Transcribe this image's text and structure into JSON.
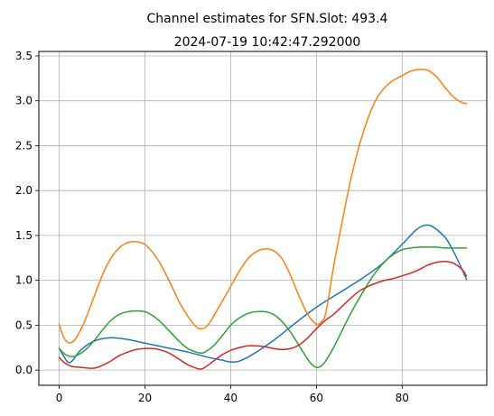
{
  "chart_data": {
    "type": "line",
    "title": "Channel estimates for SFN.Slot: 493.4",
    "subtitle": "2024-07-19 10:42:47.292000",
    "xlabel": "",
    "ylabel": "",
    "xlim": [
      -4.75,
      99.75
    ],
    "ylim": [
      -0.17,
      3.55
    ],
    "xticks": [
      0,
      20,
      40,
      60,
      80
    ],
    "yticks": [
      0.0,
      0.5,
      1.0,
      1.5,
      2.0,
      2.5,
      3.0,
      3.5
    ],
    "xtick_labels": [
      "0",
      "20",
      "40",
      "60",
      "80"
    ],
    "ytick_labels": [
      "0.0",
      "0.5",
      "1.0",
      "1.5",
      "2.0",
      "2.5",
      "3.0",
      "3.5"
    ],
    "grid": true,
    "legend": false,
    "series": [
      {
        "color": "#1f77b4",
        "x": [
          0,
          1,
          2,
          3,
          5,
          8,
          12,
          16,
          20,
          25,
          30,
          35,
          38,
          40,
          42,
          45,
          50,
          55,
          60,
          65,
          70,
          75,
          80,
          83,
          85,
          87,
          90,
          92,
          94,
          95
        ],
        "y": [
          0.24,
          0.16,
          0.09,
          0.1,
          0.22,
          0.32,
          0.36,
          0.34,
          0.3,
          0.25,
          0.2,
          0.14,
          0.11,
          0.09,
          0.1,
          0.17,
          0.33,
          0.52,
          0.7,
          0.85,
          1.0,
          1.17,
          1.4,
          1.55,
          1.61,
          1.6,
          1.48,
          1.32,
          1.12,
          1.01
        ]
      },
      {
        "color": "#ff7f0e",
        "x": [
          0,
          1,
          2,
          3,
          4,
          6,
          8,
          10,
          12,
          14,
          16,
          18,
          20,
          22,
          24,
          26,
          28,
          30,
          32,
          33,
          34,
          35,
          37,
          40,
          42,
          44,
          46,
          48,
          50,
          52,
          54,
          56,
          58,
          60,
          61,
          62,
          63,
          64,
          66,
          68,
          70,
          72,
          74,
          76,
          78,
          80,
          82,
          84,
          86,
          88,
          90,
          92,
          94,
          95
        ],
        "y": [
          0.51,
          0.37,
          0.31,
          0.31,
          0.36,
          0.55,
          0.8,
          1.05,
          1.24,
          1.36,
          1.42,
          1.43,
          1.4,
          1.3,
          1.15,
          0.96,
          0.76,
          0.6,
          0.48,
          0.46,
          0.47,
          0.52,
          0.68,
          0.93,
          1.1,
          1.24,
          1.32,
          1.35,
          1.33,
          1.24,
          1.05,
          0.82,
          0.62,
          0.51,
          0.53,
          0.6,
          0.85,
          1.15,
          1.65,
          2.12,
          2.5,
          2.8,
          3.02,
          3.15,
          3.23,
          3.28,
          3.33,
          3.35,
          3.34,
          3.27,
          3.15,
          3.04,
          2.98,
          2.97
        ]
      },
      {
        "color": "#2ca02c",
        "x": [
          0,
          1,
          2,
          3,
          4,
          6,
          8,
          10,
          12,
          14,
          16,
          18,
          20,
          22,
          24,
          26,
          28,
          30,
          32,
          33,
          34,
          36,
          38,
          40,
          42,
          44,
          46,
          48,
          50,
          52,
          54,
          56,
          58,
          59,
          60,
          61,
          62,
          64,
          66,
          68,
          70,
          72,
          74,
          76,
          78,
          80,
          82,
          84,
          86,
          88,
          90,
          92,
          94,
          95
        ],
        "y": [
          0.24,
          0.19,
          0.16,
          0.15,
          0.16,
          0.22,
          0.32,
          0.44,
          0.55,
          0.62,
          0.65,
          0.66,
          0.65,
          0.6,
          0.52,
          0.42,
          0.32,
          0.24,
          0.2,
          0.19,
          0.2,
          0.27,
          0.38,
          0.5,
          0.58,
          0.63,
          0.65,
          0.65,
          0.62,
          0.54,
          0.42,
          0.27,
          0.12,
          0.06,
          0.03,
          0.04,
          0.09,
          0.25,
          0.44,
          0.63,
          0.8,
          0.96,
          1.1,
          1.21,
          1.29,
          1.34,
          1.36,
          1.37,
          1.37,
          1.37,
          1.36,
          1.36,
          1.36,
          1.36
        ]
      },
      {
        "color": "#d62728",
        "x": [
          0,
          1,
          2,
          3,
          5,
          8,
          10,
          12,
          14,
          16,
          18,
          20,
          22,
          24,
          26,
          28,
          30,
          32,
          33,
          34,
          36,
          38,
          40,
          42,
          44,
          46,
          48,
          50,
          52,
          54,
          56,
          58,
          60,
          62,
          64,
          66,
          68,
          70,
          72,
          74,
          76,
          78,
          80,
          82,
          84,
          86,
          88,
          90,
          92,
          94,
          95
        ],
        "y": [
          0.14,
          0.09,
          0.06,
          0.04,
          0.03,
          0.02,
          0.05,
          0.1,
          0.16,
          0.2,
          0.23,
          0.24,
          0.24,
          0.22,
          0.18,
          0.12,
          0.06,
          0.02,
          0.01,
          0.03,
          0.1,
          0.17,
          0.22,
          0.25,
          0.27,
          0.27,
          0.26,
          0.24,
          0.23,
          0.24,
          0.28,
          0.36,
          0.46,
          0.55,
          0.62,
          0.71,
          0.8,
          0.88,
          0.93,
          0.97,
          1.0,
          1.02,
          1.05,
          1.08,
          1.12,
          1.17,
          1.2,
          1.21,
          1.19,
          1.12,
          1.05
        ]
      }
    ]
  }
}
